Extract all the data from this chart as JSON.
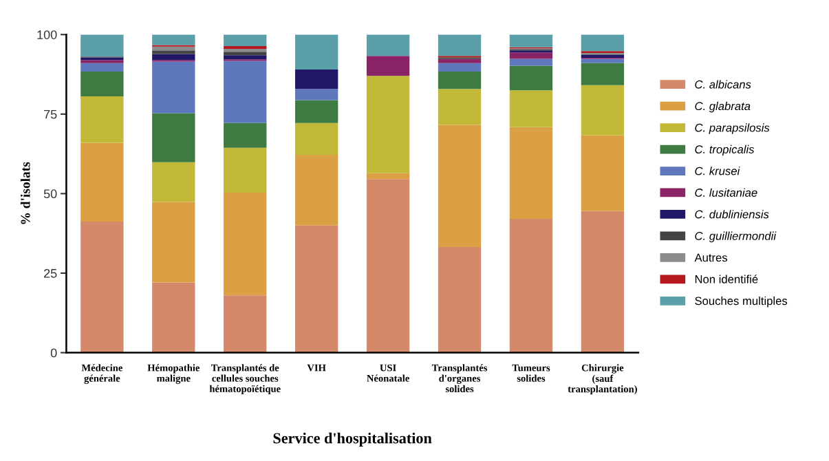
{
  "chart_data": {
    "type": "bar",
    "stacked": true,
    "xlabel": "Service d'hospitalisation",
    "ylabel": "% d'isolats",
    "categories": [
      "Médecine\ngénérale",
      "Hémopathie\nmaligne",
      "Transplantés de\ncellules souches\nhématopoïétique",
      "VIH",
      "USI\nNéonatale",
      "Transplantés\nd'organes\nsolides",
      "Tumeurs\nsolides",
      "Chirurgie\n(sauf\ntransplantation)"
    ],
    "ylim": [
      0,
      100
    ],
    "yticks": [
      0,
      25,
      50,
      75,
      100
    ],
    "grid": false,
    "legend": "right",
    "series": [
      {
        "name": "C. albicans",
        "color": "#d4896a",
        "values": [
          41.2,
          22.1,
          18.0,
          40.0,
          54.6,
          33.2,
          42.1,
          44.5
        ]
      },
      {
        "name": "C. glabrata",
        "color": "#dba044",
        "values": [
          24.8,
          25.3,
          32.3,
          22.2,
          1.8,
          38.4,
          28.8,
          23.8
        ]
      },
      {
        "name": "C. parapsilosis",
        "color": "#c2b939",
        "values": [
          14.6,
          12.5,
          14.1,
          10.0,
          30.6,
          11.3,
          11.6,
          15.8
        ]
      },
      {
        "name": "C. tropicalis",
        "color": "#3e7b40",
        "values": [
          7.8,
          15.4,
          7.8,
          7.2,
          0,
          5.5,
          7.7,
          7.0
        ]
      },
      {
        "name": "C. krusei",
        "color": "#5f78bd",
        "values": [
          2.6,
          16.2,
          19.5,
          3.5,
          0,
          2.6,
          2.2,
          1.3
        ]
      },
      {
        "name": "C. lusitaniae",
        "color": "#8b2467",
        "values": [
          1.0,
          0.5,
          0.5,
          0,
          6.3,
          1.3,
          2.0,
          0.3
        ]
      },
      {
        "name": "C. dubliniensis",
        "color": "#211768",
        "values": [
          0.8,
          1.9,
          1.3,
          6.1,
          0,
          0,
          0.6,
          0.9
        ]
      },
      {
        "name": "C. guilliermondii",
        "color": "#444444",
        "values": [
          0.3,
          1.1,
          1.1,
          0,
          0,
          0.5,
          0.3,
          0.3
        ]
      },
      {
        "name": "Autres",
        "color": "#8c8c8c",
        "values": [
          0,
          1.2,
          0.9,
          0,
          0,
          0,
          0.3,
          0.3
        ]
      },
      {
        "name": "Non identifié",
        "color": "#b5171e",
        "values": [
          0,
          0.5,
          0.9,
          0,
          0,
          0.5,
          0.4,
          0.6
        ]
      },
      {
        "name": "Souches multiples",
        "color": "#5b9fa8",
        "values": [
          6.9,
          3.3,
          3.6,
          11.0,
          6.7,
          6.7,
          4.0,
          5.2
        ]
      }
    ]
  }
}
